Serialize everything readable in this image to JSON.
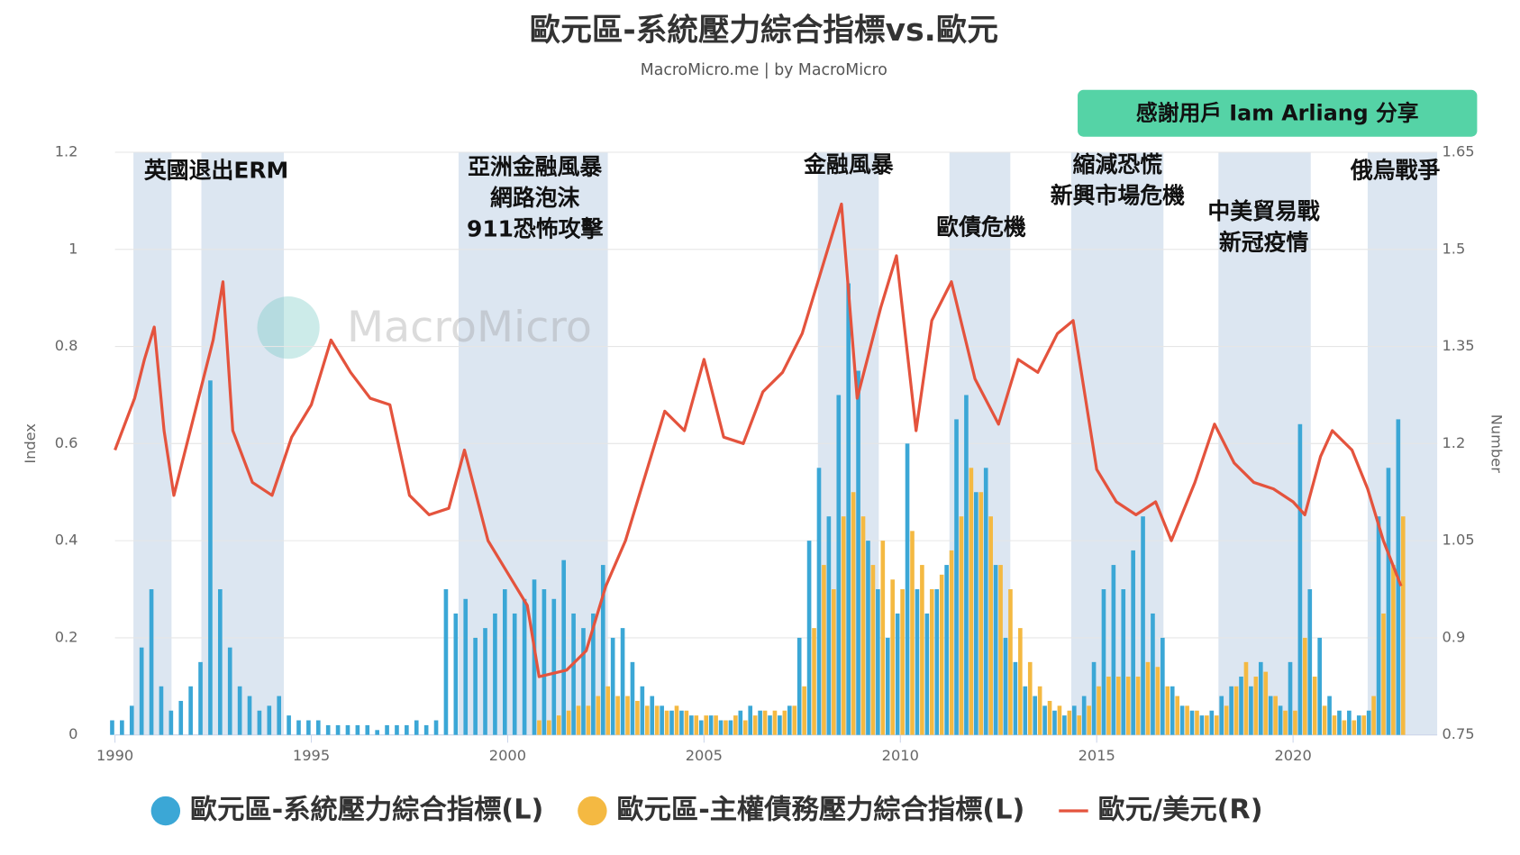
{
  "chart_data": {
    "type": "combo",
    "title": "歐元區-系統壓力綜合指標vs.歐元",
    "subtitle": "MacroMicro.me | by MacroMicro",
    "watermark": "MacroMicro",
    "badge": "感謝用戶  Iam Arliang 分享",
    "y_label": "Index",
    "y2_label": "Number",
    "grid": true,
    "legend": "bottom",
    "xlim": [
      1990,
      2023.67
    ],
    "xticks": [
      1990,
      1995,
      2000,
      2005,
      2010,
      2015,
      2020
    ],
    "ylim": [
      0,
      1.2
    ],
    "yticks": [
      0,
      0.2,
      0.4,
      0.6,
      0.8,
      1,
      1.2
    ],
    "y2lim": [
      0.75,
      1.65
    ],
    "y2ticks": [
      0.75,
      0.9,
      1.05,
      1.2,
      1.35,
      1.5,
      1.65
    ],
    "bands": [
      [
        1990.47,
        1991.44
      ],
      [
        1992.2,
        1994.3
      ],
      [
        1998.75,
        2002.55
      ],
      [
        2007.9,
        2009.45
      ],
      [
        2011.25,
        2012.8
      ],
      [
        2014.35,
        2016.7
      ],
      [
        2018.1,
        2020.45
      ],
      [
        2021.9,
        2023.67
      ]
    ],
    "annotations": [
      [
        "英國退出ERM"
      ],
      [
        "亞洲金融風暴",
        "網路泡沫",
        "911恐怖攻擊"
      ],
      [
        "金融風暴"
      ],
      [
        "歐債危機"
      ],
      [
        "縮減恐慌",
        "新興市場危機"
      ],
      [
        "中美貿易戰",
        "新冠疫情"
      ],
      [
        "俄烏戰爭"
      ]
    ],
    "x": [
      1990,
      1990.25,
      1990.5,
      1990.75,
      1991,
      1991.25,
      1991.5,
      1991.75,
      1992,
      1992.25,
      1992.5,
      1992.75,
      1993,
      1993.25,
      1993.5,
      1993.75,
      1994,
      1994.25,
      1994.5,
      1994.75,
      1995,
      1995.25,
      1995.5,
      1995.75,
      1996,
      1996.25,
      1996.5,
      1996.75,
      1997,
      1997.25,
      1997.5,
      1997.75,
      1998,
      1998.25,
      1998.5,
      1998.75,
      1999,
      1999.25,
      1999.5,
      1999.75,
      2000,
      2000.25,
      2000.5,
      2000.75,
      2001,
      2001.25,
      2001.5,
      2001.75,
      2002,
      2002.25,
      2002.5,
      2002.75,
      2003,
      2003.25,
      2003.5,
      2003.75,
      2004,
      2004.25,
      2004.5,
      2004.75,
      2005,
      2005.25,
      2005.5,
      2005.75,
      2006,
      2006.25,
      2006.5,
      2006.75,
      2007,
      2007.25,
      2007.5,
      2007.75,
      2008,
      2008.25,
      2008.5,
      2008.75,
      2009,
      2009.25,
      2009.5,
      2009.75,
      2010,
      2010.25,
      2010.5,
      2010.75,
      2011,
      2011.25,
      2011.5,
      2011.75,
      2012,
      2012.25,
      2012.5,
      2012.75,
      2013,
      2013.25,
      2013.5,
      2013.75,
      2014,
      2014.25,
      2014.5,
      2014.75,
      2015,
      2015.25,
      2015.5,
      2015.75,
      2016,
      2016.25,
      2016.5,
      2016.75,
      2017,
      2017.25,
      2017.5,
      2017.75,
      2018,
      2018.25,
      2018.5,
      2018.75,
      2019,
      2019.25,
      2019.5,
      2019.75,
      2020,
      2020.25,
      2020.5,
      2020.75,
      2021,
      2021.25,
      2021.5,
      2021.75,
      2022,
      2022.25,
      2022.5,
      2022.75
    ],
    "series": [
      {
        "name": "歐元區-系統壓力綜合指標(L)",
        "color": "#3ba7d6",
        "type": "bar",
        "values": [
          0.03,
          0.03,
          0.06,
          0.18,
          0.3,
          0.1,
          0.05,
          0.07,
          0.1,
          0.15,
          0.73,
          0.3,
          0.18,
          0.1,
          0.08,
          0.05,
          0.06,
          0.08,
          0.04,
          0.03,
          0.03,
          0.03,
          0.02,
          0.02,
          0.02,
          0.02,
          0.02,
          0.01,
          0.02,
          0.02,
          0.02,
          0.03,
          0.02,
          0.03,
          0.3,
          0.25,
          0.28,
          0.2,
          0.22,
          0.25,
          0.3,
          0.25,
          0.28,
          0.32,
          0.3,
          0.28,
          0.36,
          0.25,
          0.22,
          0.25,
          0.35,
          0.2,
          0.22,
          0.15,
          0.1,
          0.08,
          0.06,
          0.05,
          0.05,
          0.04,
          0.03,
          0.04,
          0.03,
          0.03,
          0.05,
          0.06,
          0.05,
          0.04,
          0.04,
          0.06,
          0.2,
          0.4,
          0.55,
          0.45,
          0.7,
          0.93,
          0.75,
          0.4,
          0.3,
          0.2,
          0.25,
          0.6,
          0.3,
          0.25,
          0.3,
          0.35,
          0.65,
          0.7,
          0.5,
          0.55,
          0.35,
          0.2,
          0.15,
          0.1,
          0.08,
          0.06,
          0.05,
          0.04,
          0.06,
          0.08,
          0.15,
          0.3,
          0.35,
          0.3,
          0.38,
          0.45,
          0.25,
          0.2,
          0.1,
          0.06,
          0.05,
          0.04,
          0.05,
          0.08,
          0.1,
          0.12,
          0.1,
          0.15,
          0.08,
          0.06,
          0.15,
          0.64,
          0.3,
          0.2,
          0.08,
          0.05,
          0.05,
          0.04,
          0.05,
          0.45,
          0.55,
          0.65
        ]
      },
      {
        "name": "歐元區-主權債務壓力綜合指標(L)",
        "color": "#f4b942",
        "type": "bar",
        "values": [
          null,
          null,
          null,
          null,
          null,
          null,
          null,
          null,
          null,
          null,
          null,
          null,
          null,
          null,
          null,
          null,
          null,
          null,
          null,
          null,
          null,
          null,
          null,
          null,
          null,
          null,
          null,
          null,
          null,
          null,
          null,
          null,
          null,
          null,
          null,
          null,
          null,
          null,
          null,
          null,
          null,
          null,
          null,
          0.03,
          0.03,
          0.04,
          0.05,
          0.06,
          0.06,
          0.08,
          0.1,
          0.08,
          0.08,
          0.07,
          0.06,
          0.06,
          0.05,
          0.06,
          0.05,
          0.04,
          0.04,
          0.04,
          0.03,
          0.04,
          0.03,
          0.04,
          0.05,
          0.05,
          0.05,
          0.06,
          0.1,
          0.22,
          0.35,
          0.3,
          0.45,
          0.5,
          0.45,
          0.35,
          0.4,
          0.32,
          0.3,
          0.42,
          0.35,
          0.3,
          0.33,
          0.38,
          0.45,
          0.55,
          0.5,
          0.45,
          0.35,
          0.3,
          0.22,
          0.15,
          0.1,
          0.07,
          0.06,
          0.05,
          0.04,
          0.06,
          0.1,
          0.12,
          0.12,
          0.12,
          0.12,
          0.15,
          0.14,
          0.1,
          0.08,
          0.06,
          0.05,
          0.04,
          0.04,
          0.06,
          0.1,
          0.15,
          0.12,
          0.13,
          0.08,
          0.05,
          0.05,
          0.2,
          0.12,
          0.06,
          0.04,
          0.03,
          0.03,
          0.04,
          0.08,
          0.25,
          0.35,
          0.45
        ]
      },
      {
        "name": "歐元/美元(R)",
        "color": "#e4533d",
        "type": "line",
        "axis": "y2",
        "x": [
          1990,
          1990.25,
          1990.5,
          1990.75,
          1991,
          1991.25,
          1991.5,
          1991.75,
          1992,
          1992.5,
          1992.75,
          1993,
          1993.5,
          1994,
          1994.5,
          1995,
          1995.5,
          1996,
          1996.5,
          1997,
          1997.5,
          1998,
          1998.5,
          1998.9,
          1999.5,
          2000,
          2000.5,
          2000.8,
          2001.5,
          2002,
          2002.5,
          2003,
          2003.5,
          2004,
          2004.5,
          2005,
          2005.5,
          2006,
          2006.5,
          2007,
          2007.5,
          2008,
          2008.5,
          2008.9,
          2009.5,
          2009.9,
          2010.4,
          2010.8,
          2011.3,
          2011.9,
          2012.5,
          2013,
          2013.5,
          2014,
          2014.4,
          2015,
          2015.5,
          2016,
          2016.5,
          2016.9,
          2017.5,
          2018,
          2018.5,
          2019,
          2019.5,
          2020,
          2020.3,
          2020.7,
          2021,
          2021.5,
          2021.9,
          2022.3,
          2022.75
        ],
        "values": [
          1.19,
          1.23,
          1.27,
          1.33,
          1.38,
          1.22,
          1.12,
          1.18,
          1.24,
          1.36,
          1.45,
          1.22,
          1.14,
          1.12,
          1.21,
          1.26,
          1.36,
          1.31,
          1.27,
          1.26,
          1.12,
          1.09,
          1.1,
          1.19,
          1.05,
          1,
          0.95,
          0.84,
          0.85,
          0.88,
          0.98,
          1.05,
          1.15,
          1.25,
          1.22,
          1.33,
          1.21,
          1.2,
          1.28,
          1.31,
          1.37,
          1.47,
          1.57,
          1.27,
          1.41,
          1.49,
          1.22,
          1.39,
          1.45,
          1.3,
          1.23,
          1.33,
          1.31,
          1.37,
          1.39,
          1.16,
          1.11,
          1.09,
          1.11,
          1.05,
          1.14,
          1.23,
          1.17,
          1.14,
          1.13,
          1.11,
          1.09,
          1.18,
          1.22,
          1.19,
          1.13,
          1.05,
          0.98
        ]
      }
    ]
  }
}
